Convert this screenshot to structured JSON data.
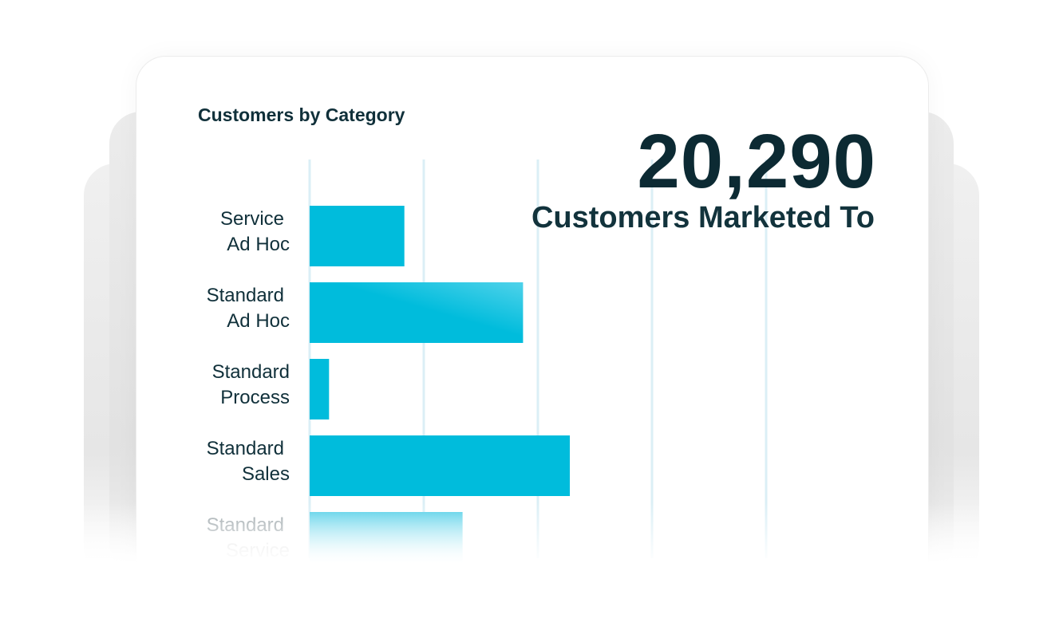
{
  "chart_data": {
    "type": "bar",
    "orientation": "horizontal",
    "title": "Customers by Category",
    "categories": [
      [
        "Service",
        "Ad Hoc"
      ],
      [
        "Standard",
        "Ad Hoc"
      ],
      [
        "Standard",
        "Process"
      ],
      [
        "Standard",
        "Sales"
      ],
      [
        "Standard",
        "Service"
      ]
    ],
    "values": [
      0.83,
      1.87,
      0.17,
      2.28,
      1.34
    ],
    "xlim": [
      0,
      4
    ],
    "grid": true,
    "bar_color": "#00bcdc"
  },
  "kpi": {
    "value": "20,290",
    "label": "Customers Marketed To"
  }
}
